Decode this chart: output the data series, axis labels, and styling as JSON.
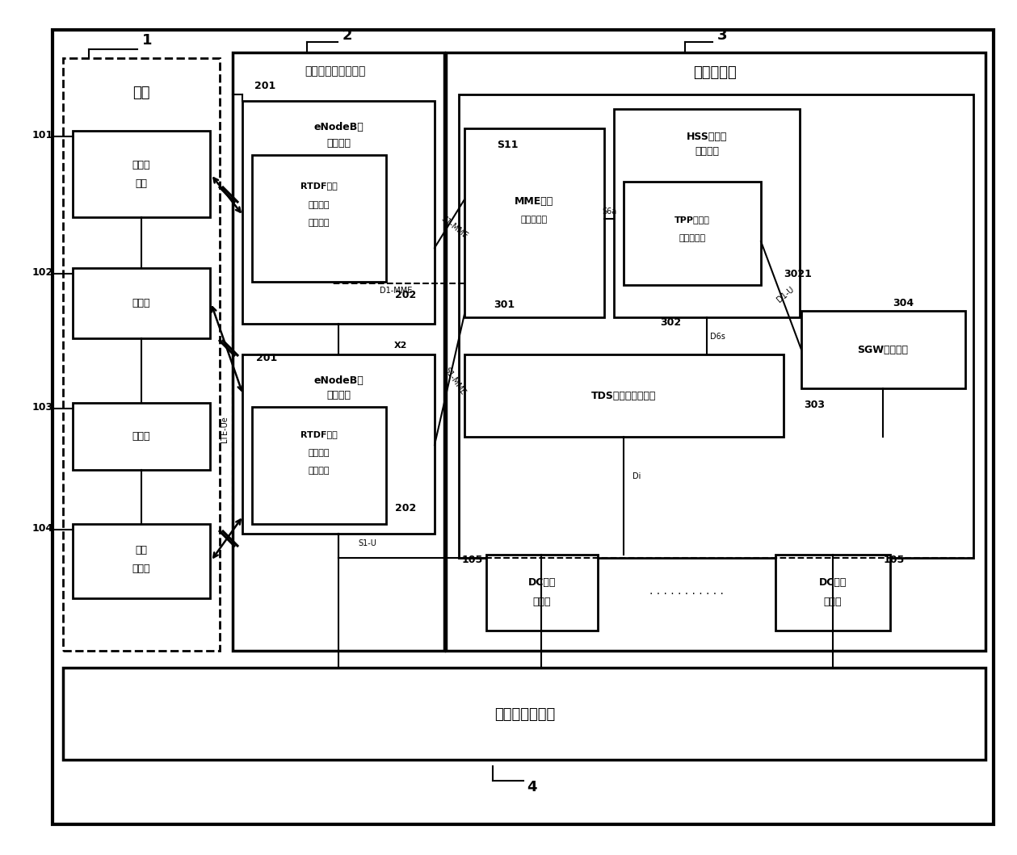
{
  "bg": "#ffffff",
  "fw": 12.39,
  "fh": 10.4,
  "labels": {
    "s1": "终端",
    "s2t": "宽带无线接入子系统",
    "s2n": "201",
    "s3t": "网络子系统",
    "s4t": "操作维护子系统",
    "b101l1": "手持移",
    "b101l2": "动台",
    "b102": "车载台",
    "b103": "固定台",
    "b104l1": "无线",
    "b104l2": "调度台",
    "en1l1": "eNodeB演",
    "en1l2": "进型基站",
    "rtdf1l1": "RTDF无线",
    "rtdf1l2": "集群调度",
    "rtdf1l3": "功能模块",
    "en2l1": "eNodeB演",
    "en2l2": "进型基站",
    "rtdf2l1": "RTDF无线",
    "rtdf2l2": "集群调度",
    "rtdf2l3": "功能模块",
    "mmel1": "MME移动",
    "mmel2": "性管感模块",
    "hssl1": "HSS归属用",
    "hssl2": "户服务器",
    "tppl1": "TPP策略触",
    "tppl2": "发功能模块",
    "tds": "TDS集群调度服务器",
    "sgw": "SGW服务网关",
    "dc1l1": "DC有线",
    "dc1l2": "调度台",
    "dc2l1": "DC有线",
    "dc2l2": "调度台",
    "n1": "1",
    "n2": "2",
    "n3": "3",
    "n4": "4",
    "n101": "101",
    "n102": "102",
    "n103": "103",
    "n104": "104",
    "n105a": "105",
    "n105b": "105",
    "n201a": "201",
    "n201b": "201",
    "n202a": "202",
    "n202b": "202",
    "n301": "301",
    "n302": "302",
    "n303": "303",
    "n304": "304",
    "n3021": "3021",
    "s1mme": "S1-MME",
    "s1u": "S1-U",
    "x2": "X2",
    "s6a": "S6a",
    "dimme": "D1-MME",
    "diu": "D1-U",
    "d6s": "D6s",
    "di": "Di",
    "lteu": "LTE-Ue",
    "sii": "S11",
    "dots": ". . . . . . . . . . ."
  }
}
